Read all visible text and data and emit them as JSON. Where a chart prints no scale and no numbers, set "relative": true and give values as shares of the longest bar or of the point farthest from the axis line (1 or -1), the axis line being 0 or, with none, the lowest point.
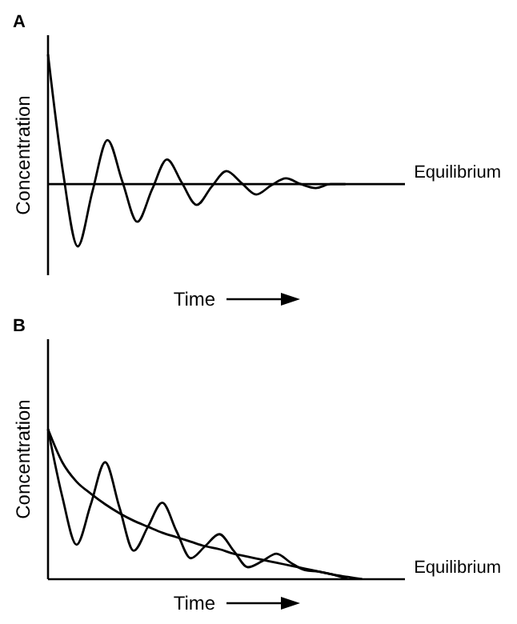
{
  "chart_data": [
    {
      "type": "line",
      "title": "A",
      "xlabel": "Time",
      "ylabel": "Concentration",
      "relative": true,
      "tick_labels": false,
      "marker": "none",
      "line_style": "solid",
      "categories": [
        null,
        null,
        null,
        null,
        null,
        null,
        null,
        null,
        null,
        null,
        null,
        null,
        null,
        null,
        null,
        null,
        null,
        null,
        null,
        null,
        null,
        null,
        null,
        null,
        null
      ],
      "series": [
        {
          "color": "#000000",
          "values": [
            1,
            0.1,
            -0.48,
            -0.05,
            0.34,
            0.02,
            -0.29,
            -0.04,
            0.19,
            0.01,
            -0.16,
            -0.02,
            0.1,
            0.01,
            -0.08,
            -0.01,
            0.045,
            0,
            -0.03,
            0,
            0,
            null,
            null,
            null,
            null
          ]
        }
      ],
      "ref_lines": [
        {
          "axis": "y",
          "value": 0,
          "label": "Equilibrium",
          "color": "#000000"
        }
      ]
    },
    {
      "type": "line",
      "title": "B",
      "xlabel": "Time",
      "ylabel": "Concentration",
      "relative": true,
      "tick_labels": false,
      "marker": "none",
      "line_style": "solid",
      "categories": [
        null,
        null,
        null,
        null,
        null,
        null,
        null,
        null,
        null,
        null,
        null,
        null,
        null,
        null,
        null,
        null,
        null,
        null,
        null,
        null,
        null,
        null,
        null,
        null,
        null,
        null
      ],
      "series": [
        {
          "color": "#000000",
          "values": [
            1,
            0.55,
            0.23,
            0.5,
            0.78,
            0.48,
            0.19,
            0.35,
            0.51,
            0.32,
            0.14,
            0.22,
            0.3,
            0.19,
            0.08,
            0.12,
            0.17,
            0.11,
            0.06,
            0.05,
            0.03,
            0,
            null,
            null,
            null,
            null
          ]
        },
        {
          "color": "#000000",
          "values": [
            1,
            0.78,
            0.65,
            0.57,
            0.5,
            0.44,
            0.39,
            0.35,
            0.31,
            0.28,
            0.25,
            0.22,
            0.2,
            0.17,
            0.15,
            0.13,
            0.11,
            0.09,
            0.07,
            0.05,
            0.03,
            0.015,
            0,
            null,
            null,
            null
          ]
        }
      ],
      "ref_lines": [
        {
          "axis": "y",
          "value": 0,
          "label": "Equilibrium",
          "color": "#000000"
        }
      ]
    }
  ]
}
